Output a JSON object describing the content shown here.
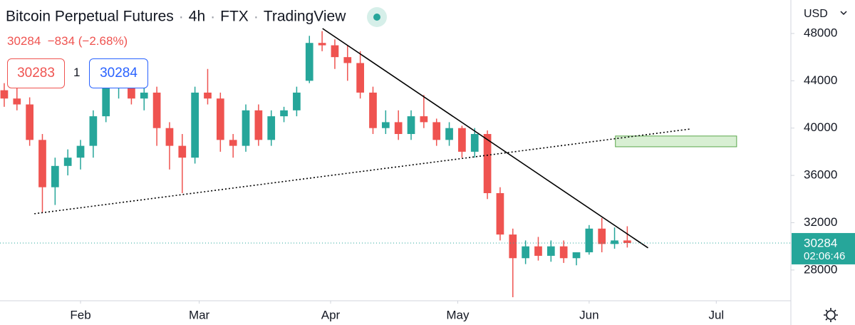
{
  "header": {
    "title": "Bitcoin Perpetual Futures",
    "interval": "4h",
    "exchange": "FTX",
    "source": "TradingView",
    "last": "30284",
    "change": "−834",
    "change_pct": "(−2.68%)",
    "bid": "30283",
    "spread": "1",
    "ask": "30284"
  },
  "chart_data": {
    "type": "candlestick",
    "currency": "USD",
    "countdown": "02:06:46",
    "last_price": 30284,
    "up_color": "#26a69a",
    "down_color": "#ef5350",
    "x": [
      13,
      16,
      19,
      22,
      25,
      28,
      31,
      34,
      37,
      40,
      43,
      46,
      49,
      52,
      55,
      58,
      61,
      64,
      67,
      70,
      73,
      76,
      79,
      82,
      85,
      88,
      91,
      94,
      97,
      100,
      103,
      106,
      109,
      112,
      115,
      118,
      121,
      124,
      127,
      130,
      133,
      136,
      139,
      142,
      145,
      148,
      151,
      154,
      157,
      160
    ],
    "open": [
      43200,
      42500,
      42000,
      39000,
      35000,
      36800,
      37500,
      38500,
      41000,
      43500,
      44000,
      42500,
      43000,
      40000,
      38500,
      37500,
      43000,
      42500,
      39000,
      38500,
      41500,
      39000,
      41000,
      41500,
      44000,
      47200,
      47000,
      46000,
      45500,
      43000,
      40000,
      40500,
      39500,
      41000,
      40500,
      39000,
      40000,
      38000,
      39500,
      34500,
      31000,
      29000,
      30000,
      29200,
      30000,
      29000,
      29500,
      31500,
      30200,
      30500
    ],
    "high": [
      43800,
      43500,
      42600,
      39500,
      37500,
      38200,
      39000,
      41500,
      44500,
      45200,
      45000,
      44000,
      43500,
      40500,
      39500,
      43500,
      45000,
      43000,
      39500,
      42000,
      42000,
      41500,
      41800,
      43500,
      47800,
      48200,
      47500,
      47000,
      46500,
      43500,
      41500,
      41500,
      41500,
      42800,
      40800,
      40500,
      40200,
      40000,
      39800,
      35000,
      31500,
      30500,
      30800,
      30500,
      30500,
      29500,
      31800,
      32400,
      31600,
      31700
    ],
    "low": [
      41800,
      41500,
      38500,
      32900,
      33500,
      36000,
      36500,
      37500,
      40500,
      42500,
      42000,
      41500,
      38500,
      36500,
      34500,
      37000,
      42000,
      38000,
      37500,
      38000,
      38500,
      38500,
      40500,
      41000,
      43800,
      46500,
      45000,
      44000,
      42500,
      39500,
      39500,
      39000,
      39000,
      40000,
      38500,
      38500,
      37500,
      37500,
      34000,
      30500,
      25700,
      28500,
      28800,
      28700,
      28600,
      28400,
      29300,
      29500,
      29800,
      29900
    ],
    "close": [
      42500,
      42000,
      39000,
      35000,
      36800,
      37500,
      38500,
      41000,
      43500,
      44000,
      42500,
      43000,
      40000,
      38500,
      37500,
      43000,
      42500,
      39000,
      38500,
      41500,
      39000,
      41000,
      41500,
      43000,
      47200,
      47000,
      46000,
      45500,
      43000,
      40000,
      40500,
      39500,
      41000,
      40500,
      39000,
      40000,
      38000,
      39500,
      34500,
      31000,
      29000,
      30000,
      29200,
      30000,
      29000,
      29500,
      31500,
      30200,
      30500,
      30284
    ],
    "xlim": [
      12,
      198.6
    ],
    "xticks": [
      {
        "value": 31,
        "label": "Feb"
      },
      {
        "value": 59,
        "label": "Mar"
      },
      {
        "value": 90,
        "label": "Apr"
      },
      {
        "value": 120,
        "label": "May"
      },
      {
        "value": 151,
        "label": "Jun"
      },
      {
        "value": 181,
        "label": "Jul"
      }
    ],
    "ylim": [
      25400,
      50830
    ],
    "yticks": [
      28000,
      32000,
      36000,
      40000,
      44000,
      48000
    ],
    "lines": [
      {
        "style": "solid",
        "color": "#000000",
        "x": [
          88.1,
          164.9
        ],
        "y": [
          48420,
          29870
        ]
      },
      {
        "style": "dotted",
        "color": "#000000",
        "x": [
          20.1,
          175
        ],
        "y": [
          32760,
          39930
        ]
      }
    ],
    "zones": [
      {
        "color": "#d8efd3",
        "border": "#5aa64a",
        "x": [
          157.2,
          185.8
        ],
        "y": [
          38420,
          39330
        ]
      }
    ]
  }
}
